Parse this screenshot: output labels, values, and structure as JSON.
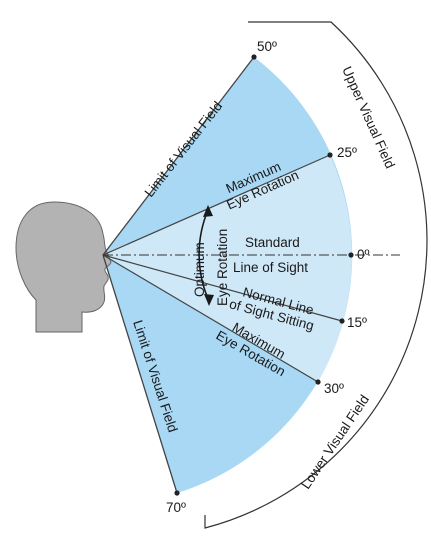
{
  "diagram": {
    "labels": {
      "limit_upper": "Limit of Visual Field",
      "limit_lower": "Limit of Visual Field",
      "upper_field": "Upper Visual Field",
      "lower_field": "Lower Visual Field",
      "max_up_1": "Maximum",
      "max_up_2": "Eye Rotation",
      "max_down_1": "Maximum",
      "max_down_2": "Eye Rotation",
      "optimum_1": "Optimum",
      "optimum_2": "Eye Rotation",
      "standard_1": "Standard",
      "standard_2": "Line of Sight",
      "normal_1": "Normal Line",
      "normal_2": "of Sight Sitting"
    },
    "angles": {
      "a50": "50º",
      "a25": "25º",
      "a0": "0º",
      "a15": "15º",
      "a30": "30º",
      "a70": "70º"
    },
    "colors": {
      "outer_field": "#a8d8f4",
      "inner_field": "#cfe8f8",
      "head": "#b3b3b3",
      "line": "#333333"
    }
  }
}
